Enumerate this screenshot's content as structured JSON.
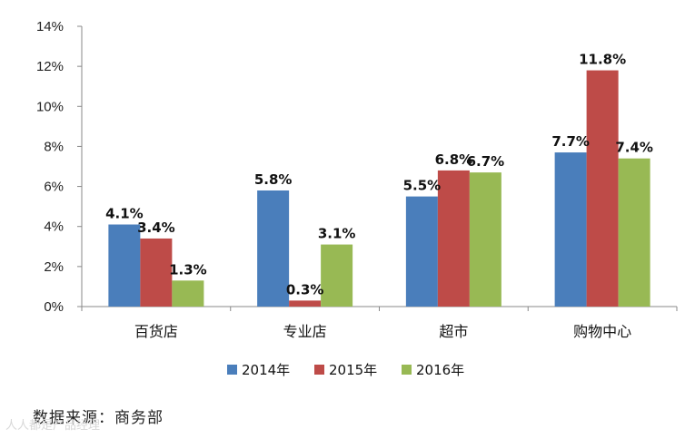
{
  "source": "数据来源：商务部",
  "watermark": "人人都是产品经理",
  "chart_data": {
    "type": "bar",
    "categories": [
      "百货店",
      "专业店",
      "超市",
      "购物中心"
    ],
    "series": [
      {
        "name": "2014年",
        "color": "#4a7ebb",
        "values": [
          4.1,
          5.8,
          5.5,
          7.7
        ],
        "labels": [
          "4.1%",
          "5.8%",
          "5.5%",
          "7.7%"
        ]
      },
      {
        "name": "2015年",
        "color": "#be4b48",
        "values": [
          3.4,
          0.3,
          6.8,
          11.8
        ],
        "labels": [
          "3.4%",
          "0.3%",
          "6.8%",
          "11.8%"
        ]
      },
      {
        "name": "2016年",
        "color": "#98b954",
        "values": [
          1.3,
          3.1,
          6.7,
          7.4
        ],
        "labels": [
          "1.3%",
          "3.1%",
          "6.7%",
          "7.4%"
        ]
      }
    ],
    "yticks": [
      "0%",
      "2%",
      "4%",
      "6%",
      "8%",
      "10%",
      "12%",
      "14%"
    ],
    "ylim": [
      0,
      14
    ],
    "legend": "bottom",
    "grid": false
  }
}
